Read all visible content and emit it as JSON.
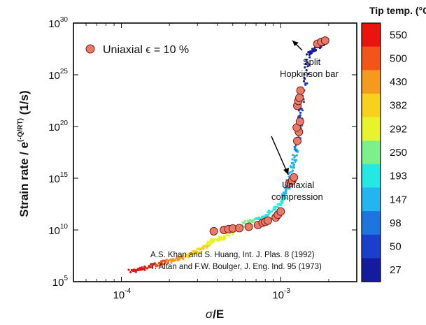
{
  "chart_data": {
    "type": "scatter",
    "xlabel": "σ/E",
    "ylabel": "Strain rate / e(-Q/RT) (1/s)",
    "x_scale": "log",
    "y_scale": "log",
    "xlim": [
      5e-05,
      0.003
    ],
    "ylim": [
      100000.0,
      1e+30
    ],
    "x_ticks": [
      {
        "value": 0.0001,
        "base": "10",
        "exp": "-4"
      },
      {
        "value": 0.001,
        "base": "10",
        "exp": "-3"
      }
    ],
    "y_ticks": [
      {
        "value": 100000.0,
        "base": "10",
        "exp": "5"
      },
      {
        "value": 10000000000.0,
        "base": "10",
        "exp": "10"
      },
      {
        "value": 1000000000000000.0,
        "base": "10",
        "exp": "15"
      },
      {
        "value": 1e+20,
        "base": "10",
        "exp": "20"
      },
      {
        "value": 1e+25,
        "base": "10",
        "exp": "25"
      },
      {
        "value": 1e+30,
        "base": "10",
        "exp": "30"
      }
    ],
    "legend": {
      "placement": "top-left",
      "label": "Uniaxial ϵ = 10 %"
    },
    "colorbar": {
      "title": "Tip temp. (°C)",
      "labels": [
        "550",
        "500",
        "430",
        "382",
        "292",
        "250",
        "193",
        "147",
        "98",
        "50",
        "27"
      ],
      "colors": [
        "#e8140d",
        "#f2541a",
        "#f69a1f",
        "#f7d11c",
        "#e9f32a",
        "#7cf08a",
        "#24e8e4",
        "#25b4f2",
        "#1d76e0",
        "#1a3fcc",
        "#141b9e"
      ]
    },
    "series": [
      {
        "name": "Uniaxial ϵ = 10 %",
        "marker": "circle",
        "color": "#e8796b",
        "points": [
          [
            0.00038,
            7500000000.0
          ],
          [
            0.00044,
            10000000000.0
          ],
          [
            0.00047,
            12000000000.0
          ],
          [
            0.0005,
            14000000000.0
          ],
          [
            0.00055,
            15000000000.0
          ],
          [
            0.00063,
            20000000000.0
          ],
          [
            0.00072,
            30000000000.0
          ],
          [
            0.00077,
            50000000000.0
          ],
          [
            0.0008,
            60000000000.0
          ],
          [
            0.00083,
            80000000000.0
          ],
          [
            0.00093,
            160000000000.0
          ],
          [
            0.00096,
            300000000000.0
          ],
          [
            0.001,
            600000000000.0
          ],
          [
            0.00113,
            300000000000000.0
          ],
          [
            0.00118,
            600000000000000.0
          ],
          [
            0.00121,
            1200000000000000.0
          ],
          [
            0.00127,
            4e+18
          ],
          [
            0.0013,
            3e+19
          ],
          [
            0.00126,
            8e+19
          ],
          [
            0.00132,
            3e+20
          ],
          [
            0.00127,
            1e+22
          ],
          [
            0.00129,
            3e+22
          ],
          [
            0.00131,
            6e+22
          ],
          [
            0.00133,
            3e+23
          ],
          [
            0.0017,
            1e+28
          ],
          [
            0.0018,
            1.5e+28
          ],
          [
            0.0019,
            2e+28
          ]
        ]
      }
    ],
    "trend_samples": {
      "description": "dense colored simulation points (color = tip temperature)",
      "points": [
        [
          0.000115,
          1000000.0,
          "550"
        ],
        [
          0.00014,
          2200000.0,
          "550"
        ],
        [
          0.00018,
          6000000.0,
          "500"
        ],
        [
          0.00022,
          15000000.0,
          "430"
        ],
        [
          0.00028,
          50000000.0,
          "382"
        ],
        [
          0.00033,
          200000000.0,
          "382"
        ],
        [
          0.00037,
          1000000000.0,
          "292"
        ],
        [
          0.00045,
          2000000000.0,
          "292"
        ],
        [
          0.0006,
          50000000000.0,
          "250"
        ],
        [
          0.0008,
          200000000000.0,
          "193"
        ],
        [
          0.001,
          4000000000000.0,
          "193"
        ],
        [
          0.0011,
          100000000000000.0,
          "147"
        ],
        [
          0.0012,
          3e+16,
          "147"
        ],
        [
          0.0013,
          1e+19,
          "98"
        ],
        [
          0.00135,
          1e+22,
          "50"
        ],
        [
          0.0015,
          1e+27,
          "27"
        ],
        [
          0.0017,
          5e+27,
          "27"
        ],
        [
          0.0019,
          2e+28,
          "27"
        ]
      ]
    },
    "annotations": [
      {
        "lines": [
          "Split",
          "Hopkinson bar"
        ]
      },
      {
        "lines": [
          "Uniaxial",
          "compression"
        ]
      }
    ],
    "references": [
      "A.S. Khan and S. Huang, Int. J. Plas. 8 (1992)",
      "T. Altan and F.W. Boulger, J. Eng. Ind. 95 (1973)"
    ]
  },
  "labels": {
    "ylabel_main": "Strain rate / e",
    "ylabel_sup": "(-Q/RT)",
    "ylabel_unit": " (1/s)",
    "xlabel_sigma": "σ",
    "xlabel_rest": "/E"
  }
}
